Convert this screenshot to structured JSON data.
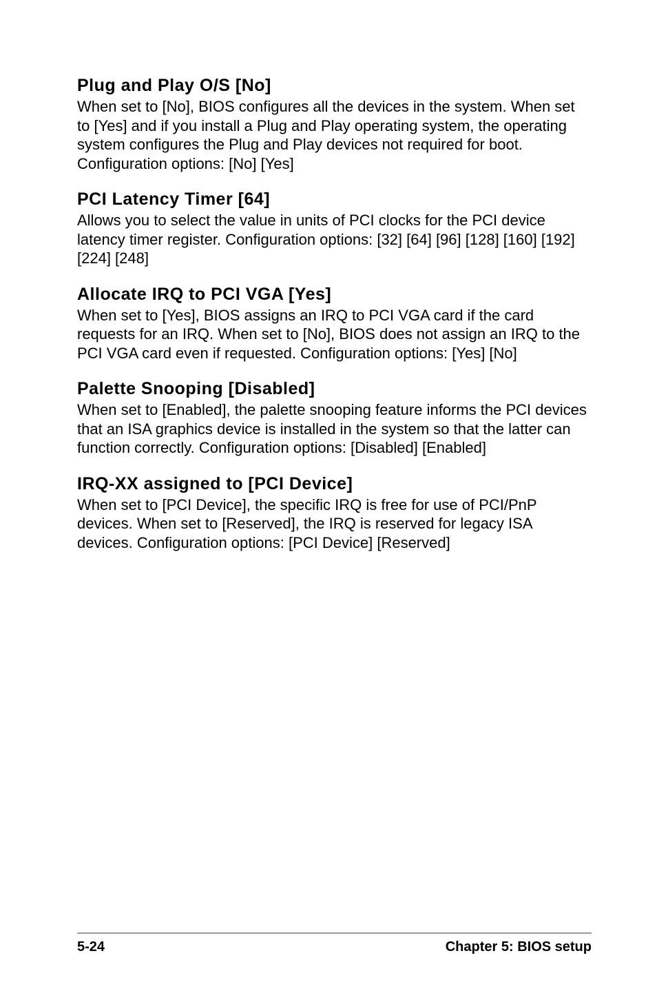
{
  "sections": [
    {
      "heading": "Plug and Play O/S [No]",
      "body": "When set to [No], BIOS configures all the devices in the system. When set to [Yes] and if you install a Plug and Play operating system, the operating system configures the Plug and Play devices not required for boot. Configuration options: [No] [Yes]"
    },
    {
      "heading": "PCI Latency Timer [64]",
      "body": "Allows you to select the value in units of PCI clocks for the PCI device latency timer register. Configuration options: [32] [64] [96] [128] [160] [192] [224] [248]"
    },
    {
      "heading": "Allocate IRQ to PCI VGA [Yes]",
      "body": "When set to [Yes], BIOS assigns an IRQ to PCI VGA card if the card requests for an IRQ. When set to [No], BIOS does not assign an IRQ to the PCI VGA card even if requested. Configuration options: [Yes] [No]"
    },
    {
      "heading": "Palette Snooping [Disabled]",
      "body": "When set to [Enabled], the palette snooping feature informs the PCI devices that an ISA graphics device is installed in the system so that the latter can function correctly. Configuration options: [Disabled] [Enabled]"
    },
    {
      "heading": "IRQ-XX assigned to [PCI Device]",
      "body": "When set to [PCI Device], the specific IRQ is free for use of PCI/PnP devices. When set to [Reserved], the IRQ is reserved for legacy ISA devices. Configuration options: [PCI Device] [Reserved]"
    }
  ],
  "footer": {
    "page_number": "5-24",
    "chapter": "Chapter 5: BIOS setup"
  }
}
